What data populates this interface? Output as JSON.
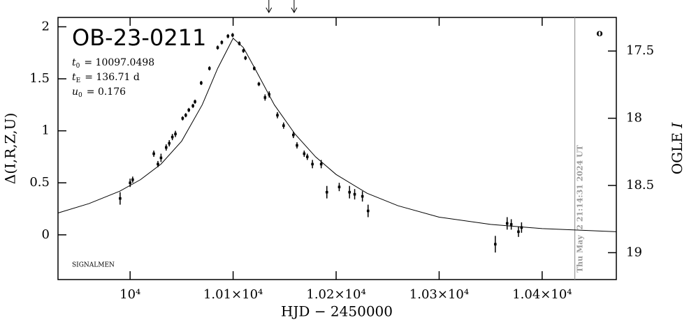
{
  "chart_data": {
    "type": "scatter",
    "title": "OB-23-0211",
    "parameters": [
      {
        "symbol": "t",
        "subscript": "0",
        "text": "= 10097.0498"
      },
      {
        "symbol": "t",
        "subscript": "E",
        "text": "= 136.71 d"
      },
      {
        "symbol": "u",
        "subscript": "0",
        "text": "= 0.176"
      }
    ],
    "footnote": "SIGNALMEN",
    "corner_mark": "o",
    "date_line": {
      "x": 10431.7,
      "label": "Thu May  2 21:14:31 2024 UT",
      "color": "#999999"
    },
    "top_arrows_x": [
      10134.7,
      10159.2
    ],
    "x_label": "HJD − 2450000",
    "y_label": "Δ(I,R,Z,U)",
    "y2_label": {
      "text": "OGLE ",
      "italic": "I"
    },
    "xlim": [
      9930,
      10472
    ],
    "xticks": [
      {
        "value": 10000,
        "label": "10⁴"
      },
      {
        "value": 10100,
        "label": "1.01×10⁴"
      },
      {
        "value": 10200,
        "label": "1.02×10⁴"
      },
      {
        "value": 10300,
        "label": "1.03×10⁴"
      },
      {
        "value": 10400,
        "label": "1.04×10⁴"
      }
    ],
    "ylim": [
      -0.43,
      2.09
    ],
    "yticks": [
      0,
      0.5,
      1,
      1.5,
      2
    ],
    "y2lim": [
      19.2,
      17.25
    ],
    "y2ticks": [
      17.5,
      18,
      18.5,
      19
    ],
    "points": {
      "color": "#000000",
      "x": [
        9990.3,
        10000,
        10002.5,
        10023,
        10027,
        10030,
        10035,
        10038,
        10041,
        10044,
        10051,
        10054,
        10057,
        10061,
        10063,
        10069,
        10077,
        10085,
        10089,
        10095,
        10099.5,
        10106,
        10110,
        10112,
        10120.5,
        10125,
        10131,
        10135,
        10143,
        10149,
        10158.5,
        10162,
        10169,
        10172,
        10177,
        10185.5,
        10191,
        10203,
        10213,
        10218,
        10225.5,
        10231,
        10354.5,
        10366,
        10370,
        10377,
        10380
      ],
      "values": [
        0.35,
        0.5,
        0.53,
        0.78,
        0.68,
        0.74,
        0.84,
        0.88,
        0.94,
        0.97,
        1.12,
        1.15,
        1.2,
        1.24,
        1.28,
        1.46,
        1.6,
        1.8,
        1.85,
        1.91,
        1.92,
        1.84,
        1.77,
        1.7,
        1.6,
        1.45,
        1.32,
        1.35,
        1.15,
        1.05,
        0.96,
        0.86,
        0.78,
        0.75,
        0.68,
        0.68,
        0.41,
        0.46,
        0.41,
        0.39,
        0.37,
        0.23,
        -0.09,
        0.11,
        0.1,
        0.03,
        0.07
      ],
      "errors": [
        0.06,
        0.04,
        0.03,
        0.03,
        0.03,
        0.04,
        0.03,
        0.03,
        0.03,
        0.03,
        0.02,
        0.02,
        0.02,
        0.02,
        0.02,
        0.02,
        0.02,
        0.02,
        0.02,
        0.02,
        0.02,
        0.02,
        0.02,
        0.02,
        0.02,
        0.02,
        0.03,
        0.03,
        0.03,
        0.03,
        0.03,
        0.03,
        0.03,
        0.03,
        0.04,
        0.04,
        0.06,
        0.04,
        0.06,
        0.05,
        0.05,
        0.06,
        0.08,
        0.06,
        0.05,
        0.05,
        0.05
      ]
    },
    "model": {
      "color": "#000000",
      "x": [
        9930,
        9960,
        9990,
        10010,
        10030,
        10050,
        10070,
        10085,
        10100,
        10110,
        10120,
        10140,
        10160,
        10180,
        10200,
        10230,
        10260,
        10300,
        10350,
        10400,
        10472
      ],
      "values": [
        0.21,
        0.3,
        0.42,
        0.53,
        0.68,
        0.9,
        1.25,
        1.6,
        1.89,
        1.8,
        1.62,
        1.25,
        0.97,
        0.75,
        0.58,
        0.4,
        0.28,
        0.17,
        0.1,
        0.06,
        0.03
      ]
    }
  }
}
